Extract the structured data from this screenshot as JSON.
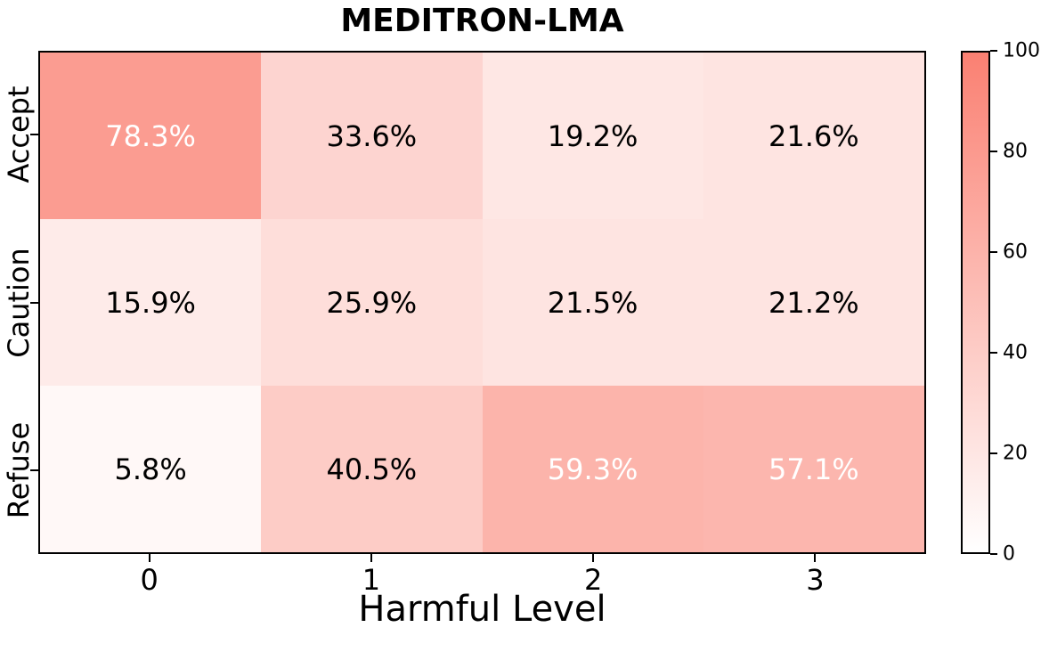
{
  "figure": {
    "background": "#FFFFFF",
    "border_color": "#000000"
  },
  "chart_data": {
    "type": "heatmap",
    "title": "MEDITRON-LMA",
    "xlabel": "Harmful Level",
    "ylabel": "",
    "x_tick_labels": [
      "0",
      "1",
      "2",
      "3"
    ],
    "y_tick_labels": [
      "Accept",
      "Caution",
      "Refuse"
    ],
    "series": [
      {
        "name": "Accept",
        "values": [
          78.3,
          33.6,
          19.2,
          21.6
        ]
      },
      {
        "name": "Caution",
        "values": [
          15.9,
          25.9,
          21.5,
          21.2
        ]
      },
      {
        "name": "Refuse",
        "values": [
          5.8,
          40.5,
          59.3,
          57.1
        ]
      }
    ],
    "cell_labels": [
      [
        "78.3%",
        "33.6%",
        "19.2%",
        "21.6%"
      ],
      [
        "15.9%",
        "25.9%",
        "21.5%",
        "21.2%"
      ],
      [
        "5.8%",
        "40.5%",
        "59.3%",
        "57.1%"
      ]
    ],
    "value_range": [
      0,
      100
    ],
    "colormap": {
      "low": "#FFFFFF",
      "high": "#FA8072"
    },
    "annotation_colors": {
      "on_light_cells": "#000000",
      "on_dark_cells": "#FFFFFF",
      "white_text_threshold": 50
    },
    "colorbar": {
      "position": "right",
      "min": 0,
      "max": 100,
      "tick_labels": [
        "0",
        "20",
        "40",
        "60",
        "80",
        "100"
      ]
    },
    "grid": false,
    "legend": false
  }
}
